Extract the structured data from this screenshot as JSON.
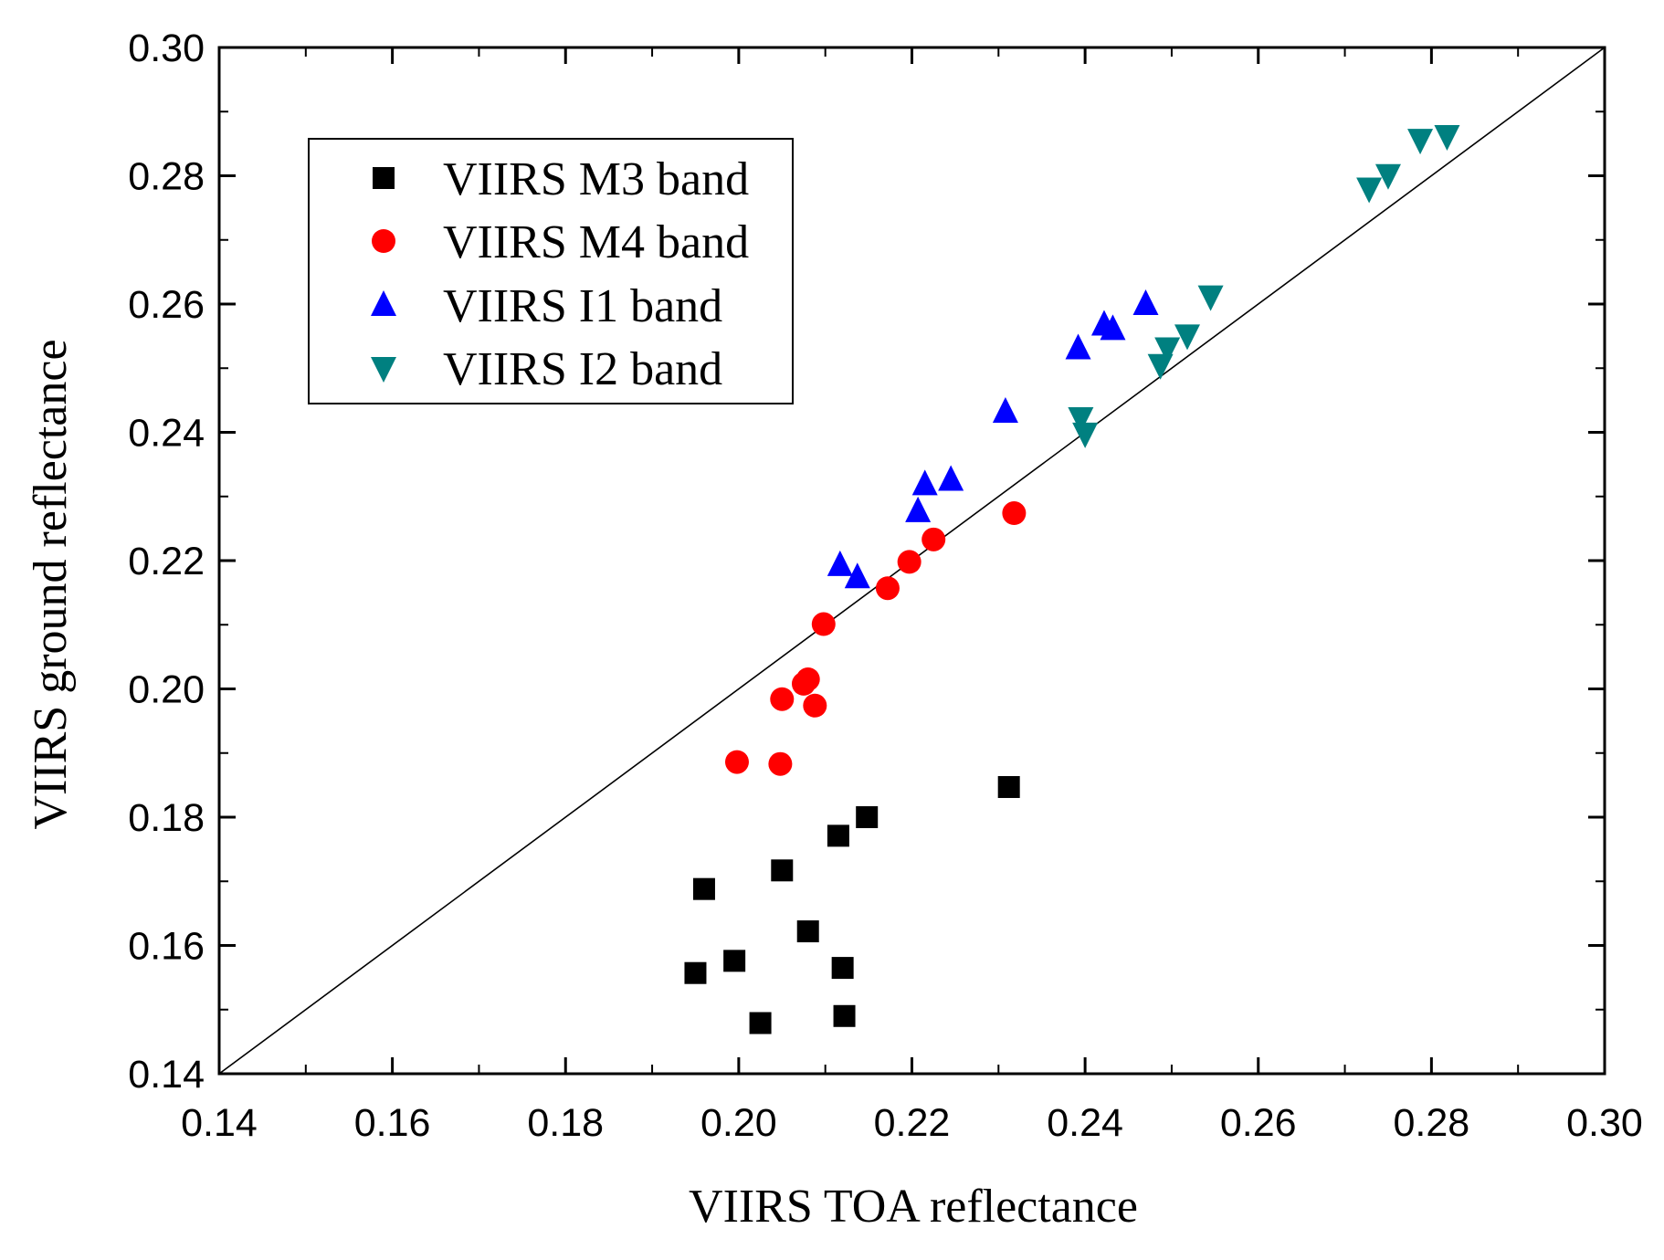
{
  "chart_data": {
    "type": "scatter",
    "title": "",
    "xlabel": "VIIRS TOA reflectance",
    "ylabel": "VIIRS ground reflectance",
    "xlim": [
      0.14,
      0.3
    ],
    "ylim": [
      0.14,
      0.3
    ],
    "xticks": [
      "0.14",
      "0.16",
      "0.18",
      "0.20",
      "0.22",
      "0.24",
      "0.26",
      "0.28",
      "0.30"
    ],
    "yticks": [
      "0.14",
      "0.16",
      "0.18",
      "0.20",
      "0.22",
      "0.24",
      "0.26",
      "0.28",
      "0.30"
    ],
    "grid": false,
    "reference_line": "1:1",
    "legend_position": "top-left",
    "series": [
      {
        "name": "VIIRS M3 band",
        "marker": "square",
        "color": "#000000",
        "points": [
          [
            0.195,
            0.1557
          ],
          [
            0.196,
            0.1688
          ],
          [
            0.1995,
            0.1576
          ],
          [
            0.2025,
            0.1479
          ],
          [
            0.205,
            0.1717
          ],
          [
            0.208,
            0.1622
          ],
          [
            0.2115,
            0.1771
          ],
          [
            0.212,
            0.1565
          ],
          [
            0.2122,
            0.149
          ],
          [
            0.2148,
            0.18
          ],
          [
            0.2312,
            0.1847
          ]
        ]
      },
      {
        "name": "VIIRS M4 band",
        "marker": "circle",
        "color": "#ff0000",
        "points": [
          [
            0.1998,
            0.1886
          ],
          [
            0.2048,
            0.1883
          ],
          [
            0.205,
            0.1984
          ],
          [
            0.2075,
            0.2008
          ],
          [
            0.208,
            0.2015
          ],
          [
            0.2088,
            0.1974
          ],
          [
            0.2098,
            0.2101
          ],
          [
            0.2172,
            0.2157
          ],
          [
            0.2197,
            0.2198
          ],
          [
            0.2225,
            0.2233
          ],
          [
            0.2318,
            0.2274
          ]
        ]
      },
      {
        "name": "VIIRS I1 band",
        "marker": "triangle-up",
        "color": "#0000ff",
        "points": [
          [
            0.2117,
            0.2193
          ],
          [
            0.2137,
            0.2174
          ],
          [
            0.2207,
            0.2277
          ],
          [
            0.2215,
            0.2319
          ],
          [
            0.2245,
            0.2326
          ],
          [
            0.2308,
            0.2432
          ],
          [
            0.2392,
            0.2531
          ],
          [
            0.2422,
            0.2568
          ],
          [
            0.2432,
            0.2561
          ],
          [
            0.247,
            0.26
          ]
        ]
      },
      {
        "name": "VIIRS I2 band",
        "marker": "triangle-down",
        "color": "#008080",
        "points": [
          [
            0.2395,
            0.2422
          ],
          [
            0.24,
            0.2398
          ],
          [
            0.2487,
            0.2505
          ],
          [
            0.2495,
            0.2531
          ],
          [
            0.2518,
            0.2551
          ],
          [
            0.2545,
            0.2612
          ],
          [
            0.2728,
            0.278
          ],
          [
            0.275,
            0.2801
          ],
          [
            0.2787,
            0.2856
          ],
          [
            0.2818,
            0.2862
          ]
        ]
      }
    ]
  }
}
